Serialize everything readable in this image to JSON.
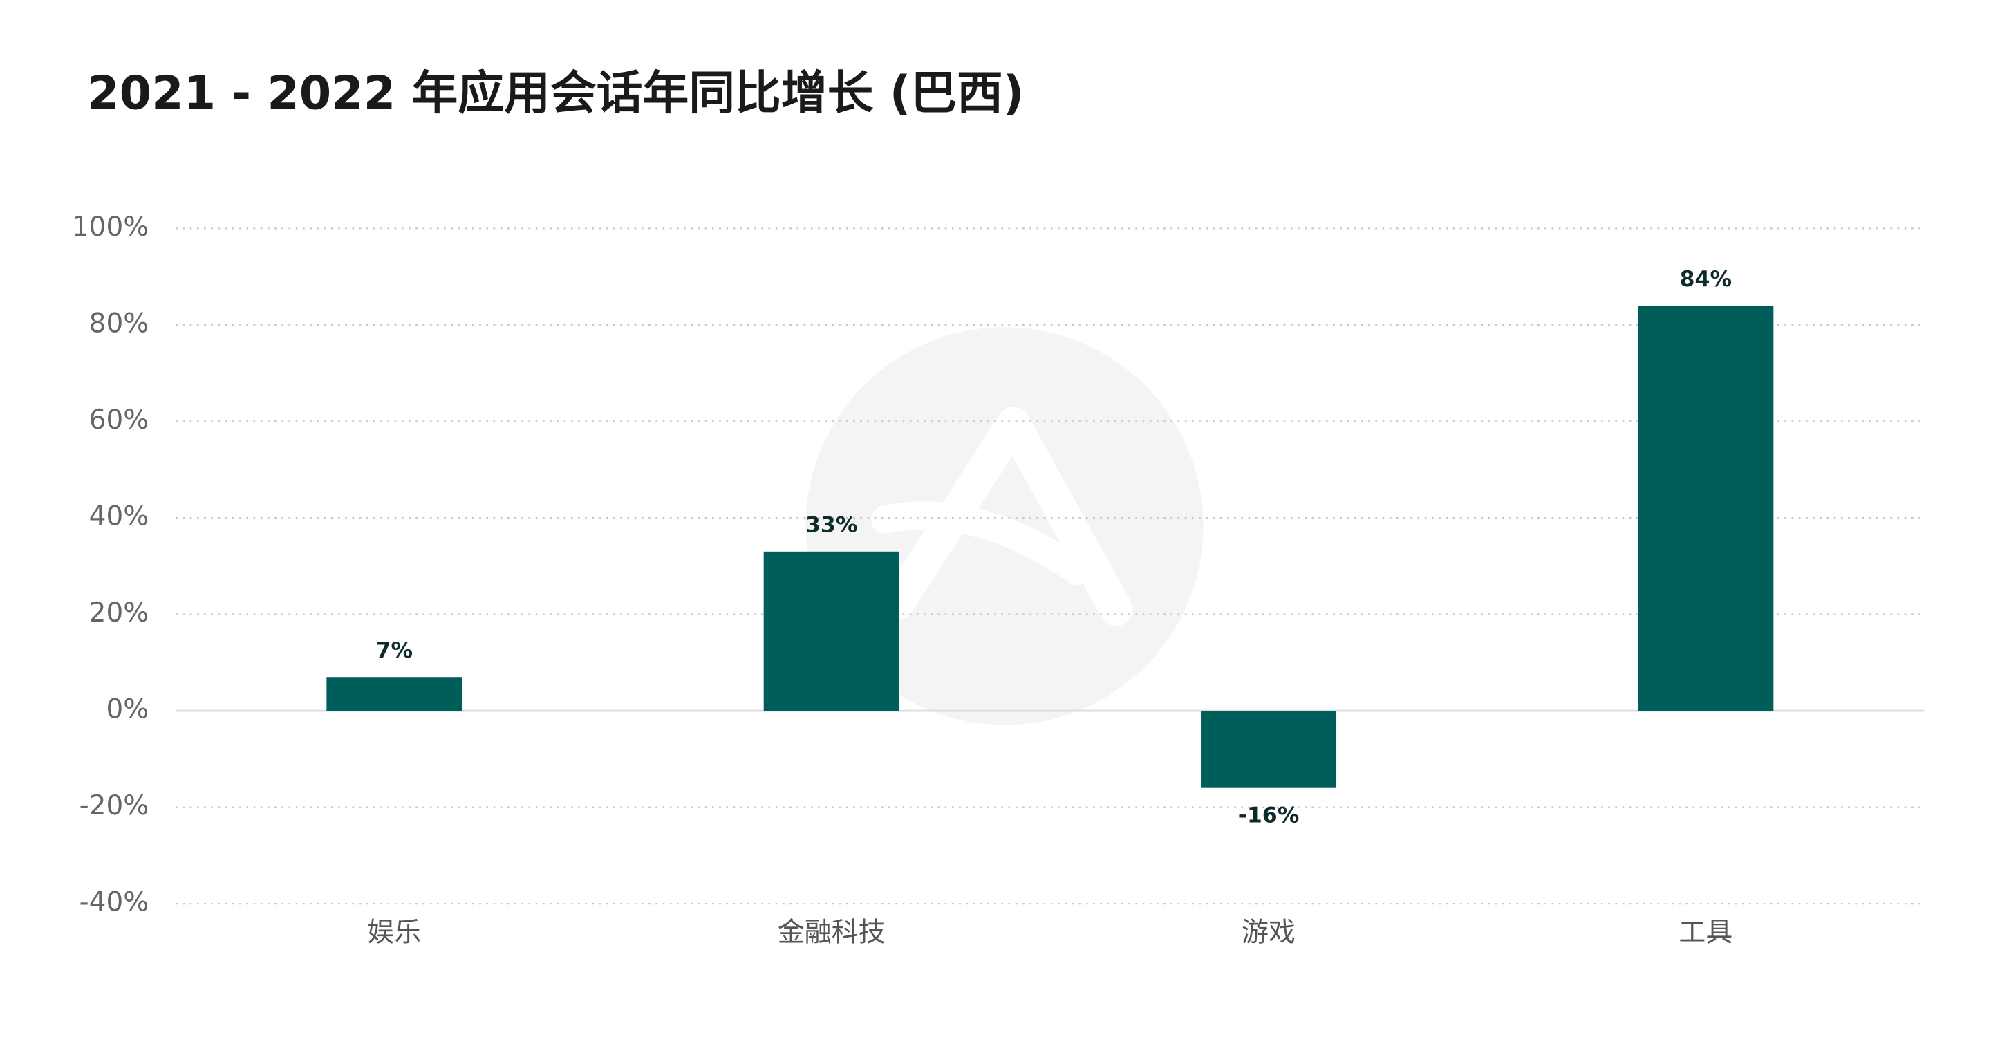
{
  "chart_data": {
    "type": "bar",
    "title": "2021 - 2022 年应用会话年同比增长 (巴西)",
    "categories": [
      "娱乐",
      "金融科技",
      "游戏",
      "工具"
    ],
    "values": [
      7,
      33,
      -16,
      84
    ],
    "value_labels": [
      "7%",
      "33%",
      "-16%",
      "84%"
    ],
    "color": "#005e5a",
    "ylim": [
      -40,
      100
    ],
    "yticks": [
      {
        "value": -40,
        "label": "-40%"
      },
      {
        "value": -20,
        "label": "-20%"
      },
      {
        "value": 0,
        "label": "0%"
      },
      {
        "value": 20,
        "label": "20%"
      },
      {
        "value": 40,
        "label": "40%"
      },
      {
        "value": 60,
        "label": "60%"
      },
      {
        "value": 80,
        "label": "80%"
      },
      {
        "value": 100,
        "label": "100%"
      }
    ],
    "grid": true
  }
}
